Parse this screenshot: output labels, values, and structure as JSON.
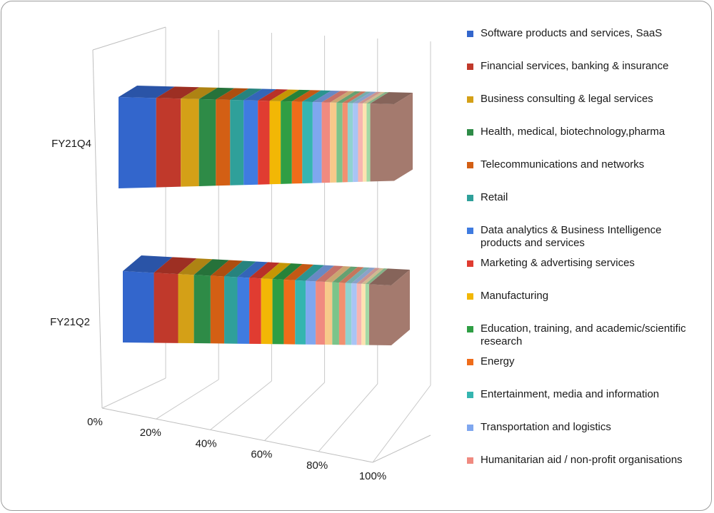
{
  "chart_data": {
    "type": "bar",
    "orientation": "horizontal",
    "stacking": "percent",
    "three_d": true,
    "categories": [
      "FY21Q4",
      "FY21Q2"
    ],
    "x_ticks": [
      "0%",
      "20%",
      "40%",
      "60%",
      "80%",
      "100%"
    ],
    "xlim": [
      0,
      100
    ],
    "grid": true,
    "legend_position": "right",
    "series": [
      {
        "name": "Software products and services, SaaS",
        "color": "#3366cc",
        "values": [
          14.5,
          11.8
        ]
      },
      {
        "name": "Financial services, banking & insurance",
        "color": "#c0392b",
        "values": [
          9.5,
          9.2
        ]
      },
      {
        "name": "Business consulting & legal services",
        "color": "#d4a017",
        "values": [
          7.0,
          6.0
        ]
      },
      {
        "name": "Health, medical, biotechnology,pharma",
        "color": "#2e8b47",
        "values": [
          6.5,
          6.3
        ]
      },
      {
        "name": "Telecommunications and networks",
        "color": "#d35f14",
        "values": [
          5.5,
          5.2
        ]
      },
      {
        "name": "Retail",
        "color": "#2fa09a",
        "values": [
          5.2,
          5.0
        ]
      },
      {
        "name": "Data analytics & Business Intelligence products and services",
        "color": "#3f7be0",
        "values": [
          5.5,
          4.5
        ]
      },
      {
        "name": "Marketing & advertising services",
        "color": "#e03c31",
        "values": [
          4.5,
          4.5
        ]
      },
      {
        "name": "Manufacturing",
        "color": "#f2b705",
        "values": [
          4.3,
          4.3
        ]
      },
      {
        "name": "Education, training, and academic/scientific research",
        "color": "#2f9e44",
        "values": [
          4.3,
          4.3
        ]
      },
      {
        "name": "Energy",
        "color": "#ef6c1a",
        "values": [
          4.0,
          4.3
        ]
      },
      {
        "name": "Entertainment, media and information",
        "color": "#35b5b0",
        "values": [
          4.0,
          4.0
        ]
      },
      {
        "name": "Transportation and logistics",
        "color": "#7fa7ef",
        "values": [
          3.5,
          3.8
        ]
      },
      {
        "name": "Humanitarian aid / non-profit organisations",
        "color": "#f08a80",
        "values": [
          3.2,
          3.5
        ]
      },
      {
        "name": "",
        "color": "#f7c98a",
        "values": [
          2.5,
          2.8
        ]
      },
      {
        "name": "",
        "color": "#7cc48a",
        "values": [
          2.3,
          2.6
        ]
      },
      {
        "name": "",
        "color": "#f29070",
        "values": [
          2.0,
          2.4
        ]
      },
      {
        "name": "",
        "color": "#8fd3d0",
        "values": [
          2.0,
          2.3
        ]
      },
      {
        "name": "",
        "color": "#a9c4f5",
        "values": [
          2.0,
          2.0
        ]
      },
      {
        "name": "",
        "color": "#f7b4b0",
        "values": [
          1.8,
          1.8
        ]
      },
      {
        "name": "",
        "color": "#fce3b0",
        "values": [
          1.5,
          1.5
        ]
      },
      {
        "name": "",
        "color": "#a3d9a5",
        "values": [
          1.4,
          1.4
        ]
      },
      {
        "name": "",
        "color": "#a47a6e",
        "values": [
          9.2,
          8.4
        ]
      }
    ]
  }
}
